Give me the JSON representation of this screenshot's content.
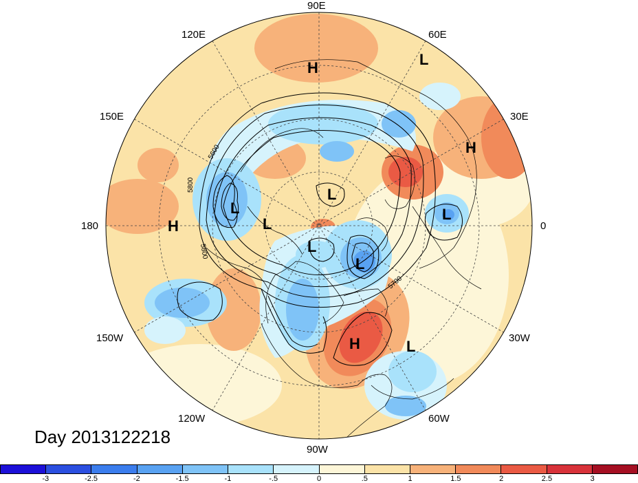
{
  "title": "Day 2013122218",
  "longitude_labels": [
    "90E",
    "60E",
    "30E",
    "0",
    "30W",
    "60W",
    "90W",
    "120W",
    "150W",
    "180",
    "150E",
    "120E"
  ],
  "pressure_centers": [
    {
      "label": "H",
      "name": "high-east-asia"
    },
    {
      "label": "L",
      "name": "low-60e"
    },
    {
      "label": "H",
      "name": "high-russia"
    },
    {
      "label": "L",
      "name": "low-europe"
    },
    {
      "label": "L",
      "name": "low-bering"
    },
    {
      "label": "L",
      "name": "low-chukchi"
    },
    {
      "label": "L",
      "name": "low-siberia"
    },
    {
      "label": "H",
      "name": "high-pacific"
    },
    {
      "label": "L",
      "name": "low-canada-arctic"
    },
    {
      "label": "L",
      "name": "low-greenland"
    },
    {
      "label": "H",
      "name": "high-atlantic"
    },
    {
      "label": "L",
      "name": "low-atlantic"
    }
  ],
  "contour_labels": [
    "5600",
    "5800",
    "5800",
    "5700"
  ],
  "colorbar": {
    "colors": [
      "#1c10d8",
      "#2b4fe0",
      "#3b7ded",
      "#59a2f2",
      "#7fc3f7",
      "#a9e2fb",
      "#d6f3fc",
      "#fdf6d8",
      "#fbe3a8",
      "#f7b27a",
      "#f18a5a",
      "#ea5a44",
      "#d8323a",
      "#a50f22"
    ],
    "labels": [
      "-3",
      "-2.5",
      "-2",
      "-1.5",
      "-1",
      "-.5",
      "0",
      ".5",
      "1",
      "1.5",
      "2",
      "2.5",
      "3"
    ]
  },
  "anomaly_colors": {
    "background": "#fbe3a8",
    "pale_warm": "#fdf6d8",
    "warm": "#f7b27a",
    "strong_warm": "#f18a5a",
    "hot": "#ea5a44",
    "pale_cold": "#d6f3fc",
    "cold": "#a9e2fb",
    "cool": "#7fc3f7",
    "strong_cold": "#59a2f2",
    "deep_cold": "#3b7ded"
  }
}
